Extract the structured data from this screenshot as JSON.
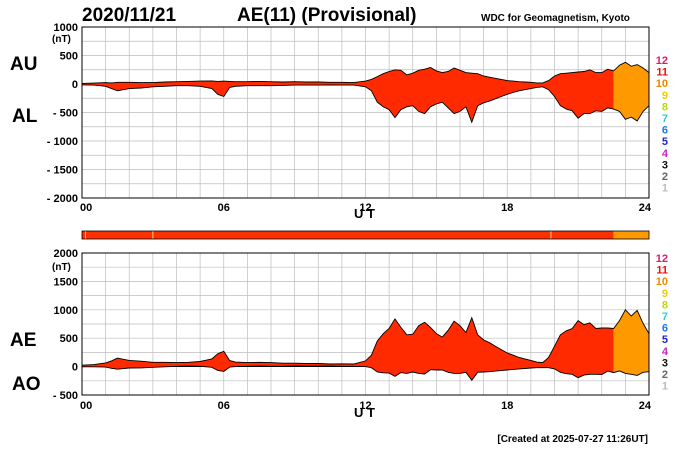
{
  "header": {
    "date": "2020/11/21",
    "title": "AE(11) (Provisional)",
    "source": "WDC for Geomagnetism, Kyoto"
  },
  "footer": {
    "created": "[Created at 2025-07-27 11:26UT]"
  },
  "colors": {
    "fill_11": "#ff2a00",
    "fill_10": "#ff9900",
    "bar_main": "#ff3000",
    "outline": "#000000"
  },
  "legend_levels": [
    {
      "label": "12",
      "color": "#e0186e"
    },
    {
      "label": "11",
      "color": "#e8120e"
    },
    {
      "label": "10",
      "color": "#ee8800"
    },
    {
      "label": "9",
      "color": "#f2cc00"
    },
    {
      "label": "8",
      "color": "#b8dc00"
    },
    {
      "label": "7",
      "color": "#30d0c8"
    },
    {
      "label": "6",
      "color": "#1a78e8"
    },
    {
      "label": "5",
      "color": "#2222cc"
    },
    {
      "label": "4",
      "color": "#cc22cc"
    },
    {
      "label": "3",
      "color": "#111111"
    },
    {
      "label": "2",
      "color": "#666666"
    },
    {
      "label": "1",
      "color": "#bbbbbb"
    }
  ],
  "data_bar": {
    "segments": [
      {
        "from": 0,
        "to": 22.5,
        "color": "#ff3000"
      },
      {
        "from": 22.5,
        "to": 24,
        "color": "#ff9900"
      }
    ],
    "marks": [
      0.15,
      3.0,
      19.85
    ]
  },
  "chart_data": [
    {
      "type": "area",
      "panel": "AU/AL",
      "series_labels": [
        "AU",
        "AL"
      ],
      "xlabel": "U T",
      "ylabel": "(nT)",
      "xlim": [
        0,
        24
      ],
      "ylim": [
        -2000,
        1000
      ],
      "x_ticks": [
        "00",
        "06",
        "12",
        "18",
        "24"
      ],
      "y_ticks": [
        "1000",
        "500",
        "0",
        "- 500",
        "- 1000",
        "- 1500",
        "- 2000"
      ],
      "y_tick_values": [
        1000,
        500,
        0,
        -500,
        -1000,
        -1500,
        -2000
      ],
      "provisional_level_switch_hour": 22.5,
      "x": [
        0,
        0.5,
        1,
        1.25,
        1.5,
        2,
        2.5,
        3,
        3.5,
        4,
        4.5,
        5,
        5.5,
        5.75,
        6,
        6.25,
        6.5,
        7,
        7.5,
        8,
        8.5,
        9,
        9.5,
        10,
        10.5,
        11,
        11.5,
        12,
        12.25,
        12.5,
        12.75,
        13,
        13.25,
        13.5,
        13.75,
        14,
        14.25,
        14.5,
        14.75,
        15,
        15.25,
        15.5,
        15.75,
        16,
        16.25,
        16.5,
        16.75,
        17,
        17.25,
        17.5,
        17.75,
        18,
        18.25,
        18.5,
        18.75,
        19,
        19.25,
        19.5,
        19.75,
        20,
        20.25,
        20.5,
        20.75,
        21,
        21.25,
        21.5,
        21.75,
        22,
        22.25,
        22.5,
        22.75,
        23,
        23.25,
        23.5,
        23.75,
        24
      ],
      "series": [
        {
          "name": "AU",
          "values": [
            10,
            15,
            25,
            20,
            30,
            30,
            25,
            25,
            35,
            40,
            45,
            50,
            55,
            45,
            50,
            45,
            40,
            40,
            45,
            40,
            35,
            40,
            35,
            35,
            30,
            30,
            25,
            50,
            80,
            130,
            180,
            220,
            250,
            240,
            160,
            190,
            240,
            260,
            290,
            230,
            200,
            220,
            280,
            240,
            200,
            190,
            180,
            140,
            120,
            100,
            80,
            60,
            50,
            40,
            35,
            30,
            20,
            20,
            60,
            140,
            180,
            190,
            200,
            210,
            220,
            250,
            200,
            200,
            260,
            230,
            330,
            380,
            310,
            340,
            280,
            200
          ]
        },
        {
          "name": "AL",
          "values": [
            -15,
            -20,
            -40,
            -80,
            -120,
            -80,
            -70,
            -50,
            -40,
            -30,
            -30,
            -40,
            -80,
            -180,
            -220,
            -60,
            -40,
            -30,
            -30,
            -30,
            -25,
            -20,
            -20,
            -20,
            -15,
            -20,
            -20,
            -50,
            -120,
            -320,
            -400,
            -450,
            -590,
            -450,
            -400,
            -380,
            -480,
            -520,
            -400,
            -350,
            -320,
            -420,
            -520,
            -480,
            -400,
            -670,
            -380,
            -330,
            -300,
            -260,
            -220,
            -180,
            -150,
            -120,
            -100,
            -80,
            -60,
            -50,
            -100,
            -220,
            -380,
            -440,
            -470,
            -600,
            -520,
            -520,
            -470,
            -480,
            -420,
            -440,
            -480,
            -620,
            -580,
            -650,
            -480,
            -380
          ]
        }
      ]
    },
    {
      "type": "area",
      "panel": "AE/AO",
      "series_labels": [
        "AE",
        "AO"
      ],
      "xlabel": "U T",
      "ylabel": "(nT)",
      "xlim": [
        0,
        24
      ],
      "ylim": [
        -500,
        2000
      ],
      "x_ticks": [
        "00",
        "06",
        "12",
        "18",
        "24"
      ],
      "y_ticks": [
        "2000",
        "1500",
        "1000",
        "500",
        "0",
        "- 500"
      ],
      "y_tick_values": [
        2000,
        1500,
        1000,
        500,
        0,
        -500
      ],
      "provisional_level_switch_hour": 22.5,
      "x": [
        0,
        0.5,
        1,
        1.25,
        1.5,
        2,
        2.5,
        3,
        3.5,
        4,
        4.5,
        5,
        5.5,
        5.75,
        6,
        6.25,
        6.5,
        7,
        7.5,
        8,
        8.5,
        9,
        9.5,
        10,
        10.5,
        11,
        11.5,
        12,
        12.25,
        12.5,
        12.75,
        13,
        13.25,
        13.5,
        13.75,
        14,
        14.25,
        14.5,
        14.75,
        15,
        15.25,
        15.5,
        15.75,
        16,
        16.25,
        16.5,
        16.75,
        17,
        17.25,
        17.5,
        17.75,
        18,
        18.25,
        18.5,
        18.75,
        19,
        19.25,
        19.5,
        19.75,
        20,
        20.25,
        20.5,
        20.75,
        21,
        21.25,
        21.5,
        21.75,
        22,
        22.25,
        22.5,
        22.75,
        23,
        23.25,
        23.5,
        23.75,
        24
      ],
      "series": [
        {
          "name": "AE",
          "values": [
            25,
            35,
            65,
            100,
            150,
            110,
            95,
            75,
            75,
            70,
            75,
            90,
            135,
            225,
            270,
            105,
            80,
            70,
            75,
            70,
            60,
            60,
            55,
            55,
            45,
            50,
            45,
            100,
            200,
            450,
            580,
            670,
            840,
            690,
            560,
            570,
            720,
            780,
            690,
            580,
            520,
            640,
            800,
            720,
            600,
            860,
            560,
            470,
            420,
            360,
            300,
            240,
            200,
            160,
            135,
            110,
            80,
            70,
            160,
            360,
            560,
            630,
            670,
            810,
            740,
            770,
            670,
            680,
            680,
            670,
            810,
            1000,
            890,
            990,
            760,
            580
          ]
        },
        {
          "name": "AO",
          "values": [
            -3,
            -3,
            -8,
            -30,
            -45,
            -25,
            -23,
            -13,
            -3,
            5,
            8,
            5,
            -13,
            -68,
            -85,
            -8,
            0,
            5,
            8,
            5,
            5,
            10,
            8,
            8,
            8,
            5,
            3,
            0,
            -20,
            -95,
            -110,
            -115,
            -170,
            -105,
            -120,
            -95,
            -120,
            -130,
            -55,
            -60,
            -60,
            -100,
            -120,
            -120,
            -100,
            -240,
            -100,
            -95,
            -90,
            -80,
            -70,
            -60,
            -50,
            -40,
            -33,
            -25,
            -20,
            -15,
            -20,
            -40,
            -100,
            -125,
            -135,
            -195,
            -150,
            -135,
            -135,
            -140,
            -80,
            -105,
            -75,
            -120,
            -135,
            -155,
            -100,
            -90
          ]
        }
      ]
    }
  ]
}
